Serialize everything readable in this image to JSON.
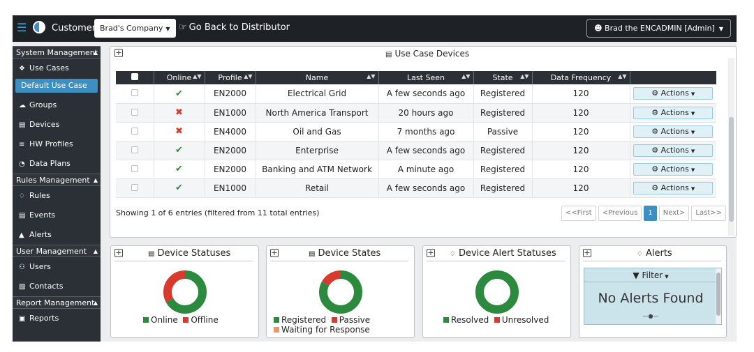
{
  "header": {
    "customer_label": "Customer:",
    "customer_value": "Brad's Company",
    "go_back": "Go Back to Distributor",
    "user": "Brad the ENCADMIN [Admin]"
  },
  "sidebar": {
    "sections": [
      {
        "title": "System Management",
        "items": [
          {
            "label": "Use Cases",
            "icon": "cubes-icon"
          },
          {
            "label": "Default Use Case",
            "icon": "",
            "active": true
          },
          {
            "label": "Groups",
            "icon": "cloud-icon"
          },
          {
            "label": "Devices",
            "icon": "hdd-icon"
          },
          {
            "label": "HW Profiles",
            "icon": "barcode-icon"
          },
          {
            "label": "Data Plans",
            "icon": "dashboard-icon"
          }
        ]
      },
      {
        "title": "Rules Management",
        "items": [
          {
            "label": "Rules",
            "icon": "bell-icon"
          },
          {
            "label": "Events",
            "icon": "file-icon"
          },
          {
            "label": "Alerts",
            "icon": "warning-icon"
          }
        ]
      },
      {
        "title": "User Management",
        "items": [
          {
            "label": "Users",
            "icon": "users-icon"
          },
          {
            "label": "Contacts",
            "icon": "book-icon"
          }
        ]
      },
      {
        "title": "Report Management",
        "items": [
          {
            "label": "Reports",
            "icon": "copy-icon"
          }
        ]
      }
    ]
  },
  "devices": {
    "title": "Use Case Devices",
    "columns": [
      "Online",
      "Profile",
      "Name",
      "Last Seen",
      "State",
      "Data Frequency"
    ],
    "rows": [
      {
        "online": true,
        "profile": "EN2000",
        "name": "Electrical Grid",
        "last_seen": "A few seconds ago",
        "state": "Registered",
        "freq": "120"
      },
      {
        "online": false,
        "profile": "EN1000",
        "name": "North America Transport",
        "last_seen": "20 hours ago",
        "state": "Registered",
        "freq": "120"
      },
      {
        "online": false,
        "profile": "EN4000",
        "name": "Oil and Gas",
        "last_seen": "7 months ago",
        "state": "Passive",
        "freq": "120"
      },
      {
        "online": true,
        "profile": "EN2000",
        "name": "Enterprise",
        "last_seen": "A few seconds ago",
        "state": "Registered",
        "freq": "120"
      },
      {
        "online": true,
        "profile": "EN2000",
        "name": "Banking and ATM Network",
        "last_seen": "A minute ago",
        "state": "Registered",
        "freq": "120"
      },
      {
        "online": true,
        "profile": "EN1000",
        "name": "Retail",
        "last_seen": "A few seconds ago",
        "state": "Registered",
        "freq": "120"
      }
    ],
    "actions_label": "Actions",
    "showing": "Showing 1 of 6 entries (filtered from 11 total entries)",
    "pager": {
      "first": "<<First",
      "prev": "<Previous",
      "current": "1",
      "next": "Next>",
      "last": "Last>>"
    }
  },
  "statuses": {
    "title": "Device Statuses",
    "legend": [
      {
        "label": "Online",
        "color": "#2c8a3e"
      },
      {
        "label": "Offline",
        "color": "#d93a2e"
      }
    ],
    "fractions": [
      0.67,
      0.33
    ]
  },
  "states": {
    "title": "Device States",
    "legend": [
      {
        "label": "Registered",
        "color": "#2c8a3e"
      },
      {
        "label": "Passive",
        "color": "#d93a2e"
      },
      {
        "label": "Waiting for Response",
        "color": "#e8956a"
      }
    ],
    "fractions": [
      0.83,
      0.17,
      0.0
    ]
  },
  "alert_statuses": {
    "title": "Device Alert Statuses",
    "legend": [
      {
        "label": "Resolved",
        "color": "#2c8a3e"
      },
      {
        "label": "Unresolved",
        "color": "#d93a2e"
      }
    ],
    "fractions": [
      1.0,
      0.0
    ]
  },
  "alerts": {
    "title": "Alerts",
    "filter": "Filter",
    "empty": "No Alerts Found"
  }
}
